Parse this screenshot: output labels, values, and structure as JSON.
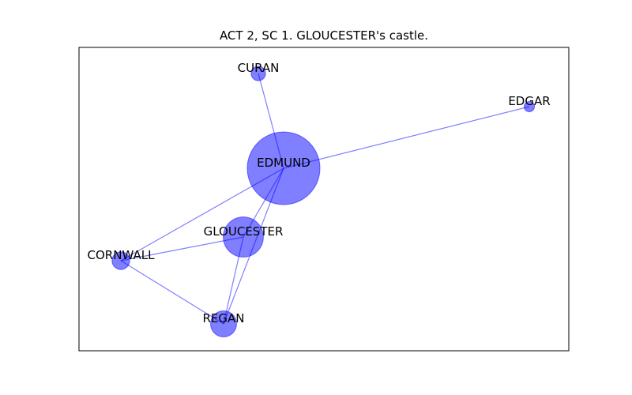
{
  "title": "ACT 2, SC 1. GLOUCESTER's castle.",
  "colors": {
    "node_fill": "#0000ff",
    "edge": "#0000ff",
    "frame": "#000000",
    "label": "#000000"
  },
  "graph": {
    "nodes": [
      {
        "id": "EDMUND",
        "label": "EDMUND",
        "weight": 1.0
      },
      {
        "id": "GLOUCESTER",
        "label": "GLOUCESTER",
        "weight": 0.29
      },
      {
        "id": "REGAN",
        "label": "REGAN",
        "weight": 0.11
      },
      {
        "id": "CORNWALL",
        "label": "CORNWALL",
        "weight": 0.04
      },
      {
        "id": "CURAN",
        "label": "CURAN",
        "weight": 0.02
      },
      {
        "id": "EDGAR",
        "label": "EDGAR",
        "weight": 0.0
      }
    ],
    "edges": [
      {
        "source": "EDMUND",
        "target": "CURAN"
      },
      {
        "source": "EDMUND",
        "target": "EDGAR"
      },
      {
        "source": "EDMUND",
        "target": "GLOUCESTER"
      },
      {
        "source": "EDMUND",
        "target": "CORNWALL"
      },
      {
        "source": "EDMUND",
        "target": "REGAN"
      },
      {
        "source": "GLOUCESTER",
        "target": "CORNWALL"
      },
      {
        "source": "GLOUCESTER",
        "target": "REGAN"
      },
      {
        "source": "CORNWALL",
        "target": "REGAN"
      }
    ]
  }
}
